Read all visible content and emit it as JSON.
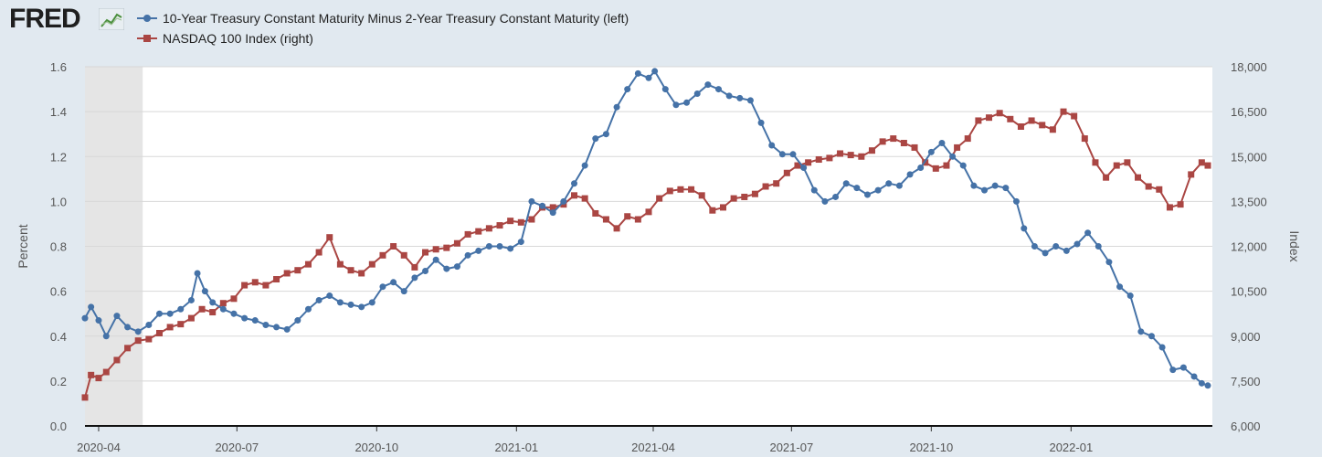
{
  "header": {
    "logo_text": "FRED",
    "logo_icon": "line-graph-icon"
  },
  "legend": [
    {
      "label": "10-Year Treasury Constant Maturity Minus 2-Year Treasury Constant Maturity (left)",
      "color": "#4572a7",
      "marker": "circle"
    },
    {
      "label": "NASDAQ 100 Index (right)",
      "color": "#aa4643",
      "marker": "square"
    }
  ],
  "colors": {
    "background": "#e1e9f0",
    "plot_background": "#ffffff",
    "recession_shade": "#e5e5e5",
    "gridline": "#d8d8d8",
    "series_1": "#4572a7",
    "series_2": "#aa4643"
  },
  "chart_data": {
    "type": "line",
    "title": "",
    "ylabel": "Percent",
    "ylabel_right": "Index",
    "x_range": [
      "2020-03-23",
      "2022-04-04"
    ],
    "x_ticks": [
      "2020-04",
      "2020-07",
      "2020-10",
      "2021-01",
      "2021-04",
      "2021-07",
      "2021-10",
      "2022-01"
    ],
    "x_tick_dates": [
      "2020-04-01",
      "2020-07-01",
      "2020-10-01",
      "2021-01-01",
      "2021-04-01",
      "2021-07-01",
      "2021-10-01",
      "2022-01-01"
    ],
    "y_left": {
      "min": 0,
      "max": 1.6,
      "ticks": [
        "0.0",
        "0.2",
        "0.4",
        "0.6",
        "0.8",
        "1.0",
        "1.2",
        "1.4",
        "1.6"
      ]
    },
    "y_right": {
      "min": 6000,
      "max": 18000,
      "ticks": [
        "6,000",
        "7,500",
        "9,000",
        "10,500",
        "12,000",
        "13,500",
        "15,000",
        "16,500",
        "18,000"
      ]
    },
    "grid": true,
    "legend_position": "top-left",
    "recession_shading": [
      {
        "start": "2020-03-23",
        "end": "2020-04-30"
      }
    ],
    "series": [
      {
        "name": "10-Year Treasury Constant Maturity Minus 2-Year Treasury Constant Maturity (left)",
        "axis": "left",
        "points": [
          [
            "2020-03-23",
            0.48
          ],
          [
            "2020-03-27",
            0.53
          ],
          [
            "2020-04-01",
            0.47
          ],
          [
            "2020-04-06",
            0.4
          ],
          [
            "2020-04-13",
            0.49
          ],
          [
            "2020-04-20",
            0.44
          ],
          [
            "2020-04-27",
            0.42
          ],
          [
            "2020-05-04",
            0.45
          ],
          [
            "2020-05-11",
            0.5
          ],
          [
            "2020-05-18",
            0.5
          ],
          [
            "2020-05-25",
            0.52
          ],
          [
            "2020-06-01",
            0.56
          ],
          [
            "2020-06-05",
            0.68
          ],
          [
            "2020-06-10",
            0.6
          ],
          [
            "2020-06-15",
            0.55
          ],
          [
            "2020-06-22",
            0.52
          ],
          [
            "2020-06-29",
            0.5
          ],
          [
            "2020-07-06",
            0.48
          ],
          [
            "2020-07-13",
            0.47
          ],
          [
            "2020-07-20",
            0.45
          ],
          [
            "2020-07-27",
            0.44
          ],
          [
            "2020-08-03",
            0.43
          ],
          [
            "2020-08-10",
            0.47
          ],
          [
            "2020-08-17",
            0.52
          ],
          [
            "2020-08-24",
            0.56
          ],
          [
            "2020-08-31",
            0.58
          ],
          [
            "2020-09-07",
            0.55
          ],
          [
            "2020-09-14",
            0.54
          ],
          [
            "2020-09-21",
            0.53
          ],
          [
            "2020-09-28",
            0.55
          ],
          [
            "2020-10-05",
            0.62
          ],
          [
            "2020-10-12",
            0.64
          ],
          [
            "2020-10-19",
            0.6
          ],
          [
            "2020-10-26",
            0.66
          ],
          [
            "2020-11-02",
            0.69
          ],
          [
            "2020-11-09",
            0.74
          ],
          [
            "2020-11-16",
            0.7
          ],
          [
            "2020-11-23",
            0.71
          ],
          [
            "2020-11-30",
            0.76
          ],
          [
            "2020-12-07",
            0.78
          ],
          [
            "2020-12-14",
            0.8
          ],
          [
            "2020-12-21",
            0.8
          ],
          [
            "2020-12-28",
            0.79
          ],
          [
            "2021-01-04",
            0.82
          ],
          [
            "2021-01-11",
            1.0
          ],
          [
            "2021-01-18",
            0.98
          ],
          [
            "2021-01-25",
            0.95
          ],
          [
            "2021-02-01",
            1.0
          ],
          [
            "2021-02-08",
            1.08
          ],
          [
            "2021-02-15",
            1.16
          ],
          [
            "2021-02-22",
            1.28
          ],
          [
            "2021-03-01",
            1.3
          ],
          [
            "2021-03-08",
            1.42
          ],
          [
            "2021-03-15",
            1.5
          ],
          [
            "2021-03-22",
            1.57
          ],
          [
            "2021-03-29",
            1.55
          ],
          [
            "2021-04-02",
            1.58
          ],
          [
            "2021-04-09",
            1.5
          ],
          [
            "2021-04-16",
            1.43
          ],
          [
            "2021-04-23",
            1.44
          ],
          [
            "2021-04-30",
            1.48
          ],
          [
            "2021-05-07",
            1.52
          ],
          [
            "2021-05-14",
            1.5
          ],
          [
            "2021-05-21",
            1.47
          ],
          [
            "2021-05-28",
            1.46
          ],
          [
            "2021-06-04",
            1.45
          ],
          [
            "2021-06-11",
            1.35
          ],
          [
            "2021-06-18",
            1.25
          ],
          [
            "2021-06-25",
            1.21
          ],
          [
            "2021-07-02",
            1.21
          ],
          [
            "2021-07-09",
            1.15
          ],
          [
            "2021-07-16",
            1.05
          ],
          [
            "2021-07-23",
            1.0
          ],
          [
            "2021-07-30",
            1.02
          ],
          [
            "2021-08-06",
            1.08
          ],
          [
            "2021-08-13",
            1.06
          ],
          [
            "2021-08-20",
            1.03
          ],
          [
            "2021-08-27",
            1.05
          ],
          [
            "2021-09-03",
            1.08
          ],
          [
            "2021-09-10",
            1.07
          ],
          [
            "2021-09-17",
            1.12
          ],
          [
            "2021-09-24",
            1.15
          ],
          [
            "2021-10-01",
            1.22
          ],
          [
            "2021-10-08",
            1.26
          ],
          [
            "2021-10-15",
            1.2
          ],
          [
            "2021-10-22",
            1.16
          ],
          [
            "2021-10-29",
            1.07
          ],
          [
            "2021-11-05",
            1.05
          ],
          [
            "2021-11-12",
            1.07
          ],
          [
            "2021-11-19",
            1.06
          ],
          [
            "2021-11-26",
            1.0
          ],
          [
            "2021-12-01",
            0.88
          ],
          [
            "2021-12-08",
            0.8
          ],
          [
            "2021-12-15",
            0.77
          ],
          [
            "2021-12-22",
            0.8
          ],
          [
            "2021-12-29",
            0.78
          ],
          [
            "2022-01-05",
            0.81
          ],
          [
            "2022-01-12",
            0.86
          ],
          [
            "2022-01-19",
            0.8
          ],
          [
            "2022-01-26",
            0.73
          ],
          [
            "2022-02-02",
            0.62
          ],
          [
            "2022-02-09",
            0.58
          ],
          [
            "2022-02-16",
            0.42
          ],
          [
            "2022-02-23",
            0.4
          ],
          [
            "2022-03-02",
            0.35
          ],
          [
            "2022-03-09",
            0.25
          ],
          [
            "2022-03-16",
            0.26
          ],
          [
            "2022-03-23",
            0.22
          ],
          [
            "2022-03-28",
            0.19
          ],
          [
            "2022-04-01",
            0.18
          ]
        ]
      },
      {
        "name": "NASDAQ 100 Index (right)",
        "axis": "right",
        "points": [
          [
            "2020-03-23",
            6950
          ],
          [
            "2020-03-27",
            7700
          ],
          [
            "2020-04-01",
            7600
          ],
          [
            "2020-04-06",
            7800
          ],
          [
            "2020-04-13",
            8200
          ],
          [
            "2020-04-20",
            8600
          ],
          [
            "2020-04-27",
            8850
          ],
          [
            "2020-05-04",
            8900
          ],
          [
            "2020-05-11",
            9100
          ],
          [
            "2020-05-18",
            9300
          ],
          [
            "2020-05-25",
            9400
          ],
          [
            "2020-06-01",
            9600
          ],
          [
            "2020-06-08",
            9900
          ],
          [
            "2020-06-15",
            9800
          ],
          [
            "2020-06-22",
            10100
          ],
          [
            "2020-06-29",
            10250
          ],
          [
            "2020-07-06",
            10700
          ],
          [
            "2020-07-13",
            10800
          ],
          [
            "2020-07-20",
            10700
          ],
          [
            "2020-07-27",
            10900
          ],
          [
            "2020-08-03",
            11100
          ],
          [
            "2020-08-10",
            11200
          ],
          [
            "2020-08-17",
            11400
          ],
          [
            "2020-08-24",
            11800
          ],
          [
            "2020-08-31",
            12300
          ],
          [
            "2020-09-07",
            11400
          ],
          [
            "2020-09-14",
            11200
          ],
          [
            "2020-09-21",
            11100
          ],
          [
            "2020-09-28",
            11400
          ],
          [
            "2020-10-05",
            11700
          ],
          [
            "2020-10-12",
            12000
          ],
          [
            "2020-10-19",
            11700
          ],
          [
            "2020-10-26",
            11300
          ],
          [
            "2020-11-02",
            11800
          ],
          [
            "2020-11-09",
            11900
          ],
          [
            "2020-11-16",
            11950
          ],
          [
            "2020-11-23",
            12100
          ],
          [
            "2020-11-30",
            12400
          ],
          [
            "2020-12-07",
            12500
          ],
          [
            "2020-12-14",
            12600
          ],
          [
            "2020-12-21",
            12700
          ],
          [
            "2020-12-28",
            12850
          ],
          [
            "2021-01-04",
            12800
          ],
          [
            "2021-01-11",
            12900
          ],
          [
            "2021-01-18",
            13300
          ],
          [
            "2021-01-25",
            13300
          ],
          [
            "2021-02-01",
            13400
          ],
          [
            "2021-02-08",
            13700
          ],
          [
            "2021-02-15",
            13600
          ],
          [
            "2021-02-22",
            13100
          ],
          [
            "2021-03-01",
            12900
          ],
          [
            "2021-03-08",
            12600
          ],
          [
            "2021-03-15",
            13000
          ],
          [
            "2021-03-22",
            12900
          ],
          [
            "2021-03-29",
            13150
          ],
          [
            "2021-04-05",
            13600
          ],
          [
            "2021-04-12",
            13850
          ],
          [
            "2021-04-19",
            13900
          ],
          [
            "2021-04-26",
            13900
          ],
          [
            "2021-05-03",
            13700
          ],
          [
            "2021-05-10",
            13200
          ],
          [
            "2021-05-17",
            13300
          ],
          [
            "2021-05-24",
            13600
          ],
          [
            "2021-05-31",
            13650
          ],
          [
            "2021-06-07",
            13750
          ],
          [
            "2021-06-14",
            14000
          ],
          [
            "2021-06-21",
            14100
          ],
          [
            "2021-06-28",
            14450
          ],
          [
            "2021-07-05",
            14700
          ],
          [
            "2021-07-12",
            14800
          ],
          [
            "2021-07-19",
            14900
          ],
          [
            "2021-07-26",
            14950
          ],
          [
            "2021-08-02",
            15100
          ],
          [
            "2021-08-09",
            15050
          ],
          [
            "2021-08-16",
            15000
          ],
          [
            "2021-08-23",
            15200
          ],
          [
            "2021-08-30",
            15500
          ],
          [
            "2021-09-06",
            15600
          ],
          [
            "2021-09-13",
            15450
          ],
          [
            "2021-09-20",
            15300
          ],
          [
            "2021-09-27",
            14800
          ],
          [
            "2021-10-04",
            14600
          ],
          [
            "2021-10-11",
            14700
          ],
          [
            "2021-10-18",
            15300
          ],
          [
            "2021-10-25",
            15600
          ],
          [
            "2021-11-01",
            16200
          ],
          [
            "2021-11-08",
            16300
          ],
          [
            "2021-11-15",
            16450
          ],
          [
            "2021-11-22",
            16250
          ],
          [
            "2021-11-29",
            16000
          ],
          [
            "2021-12-06",
            16200
          ],
          [
            "2021-12-13",
            16050
          ],
          [
            "2021-12-20",
            15900
          ],
          [
            "2021-12-27",
            16500
          ],
          [
            "2022-01-03",
            16350
          ],
          [
            "2022-01-10",
            15600
          ],
          [
            "2022-01-17",
            14800
          ],
          [
            "2022-01-24",
            14300
          ],
          [
            "2022-01-31",
            14700
          ],
          [
            "2022-02-07",
            14800
          ],
          [
            "2022-02-14",
            14300
          ],
          [
            "2022-02-21",
            14000
          ],
          [
            "2022-02-28",
            13900
          ],
          [
            "2022-03-07",
            13300
          ],
          [
            "2022-03-14",
            13400
          ],
          [
            "2022-03-21",
            14400
          ],
          [
            "2022-03-28",
            14800
          ],
          [
            "2022-04-01",
            14700
          ]
        ]
      }
    ]
  }
}
